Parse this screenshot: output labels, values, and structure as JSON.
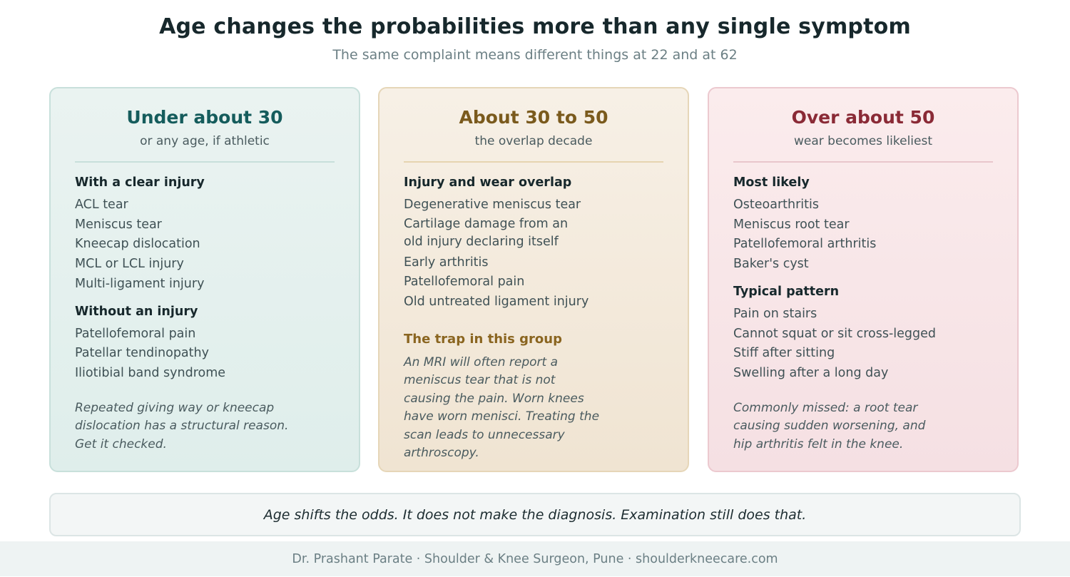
{
  "header": {
    "title": "Age changes the probabilities more than any single symptom",
    "subtitle": "The same complaint means different things at 22 and at 62"
  },
  "columns": [
    {
      "heading": "Under about 30",
      "subheading": "or any age, if athletic",
      "sections": [
        {
          "title": "With a clear injury",
          "items": [
            "ACL tear",
            "Meniscus tear",
            "Kneecap dislocation",
            "MCL or LCL injury",
            "Multi-ligament injury"
          ]
        },
        {
          "title": "Without an injury",
          "items": [
            "Patellofemoral pain",
            "Patellar tendinopathy",
            "Iliotibial band syndrome"
          ]
        }
      ],
      "note": "Repeated giving way or kneecap dislocation has a structural reason. Get it checked."
    },
    {
      "heading": "About 30 to 50",
      "subheading": "the overlap decade",
      "sections": [
        {
          "title": "Injury and wear overlap",
          "items": [
            "Degenerative meniscus tear",
            "Cartilage damage from an old injury declaring itself",
            "Early arthritis",
            "Patellofemoral pain",
            "Old untreated ligament injury"
          ]
        }
      ],
      "trap_title": "The trap in this group",
      "trap_text": "An MRI will often report a meniscus tear that is not causing the pain. Worn knees have worn menisci. Treating the scan leads to unnecessary arthroscopy."
    },
    {
      "heading": "Over about 50",
      "subheading": "wear becomes likeliest",
      "sections": [
        {
          "title": "Most likely",
          "items": [
            "Osteoarthritis",
            "Meniscus root tear",
            "Patellofemoral arthritis",
            "Baker's cyst"
          ]
        },
        {
          "title": "Typical pattern",
          "items": [
            "Pain on stairs",
            "Cannot squat or sit cross-legged",
            "Stiff after sitting",
            "Swelling after a long day"
          ]
        }
      ],
      "note": "Commonly missed: a root tear causing sudden worsening, and hip arthritis felt in the knee."
    }
  ],
  "banner": "Age shifts the odds. It does not make the diagnosis. Examination still does that.",
  "footer": "Dr. Prashant Parate · Shoulder & Knee Surgeon, Pune · shoulderkneecare.com",
  "colors": {
    "young": "#155c5c",
    "mid": "#7a5a1d",
    "old": "#8a2a36"
  }
}
